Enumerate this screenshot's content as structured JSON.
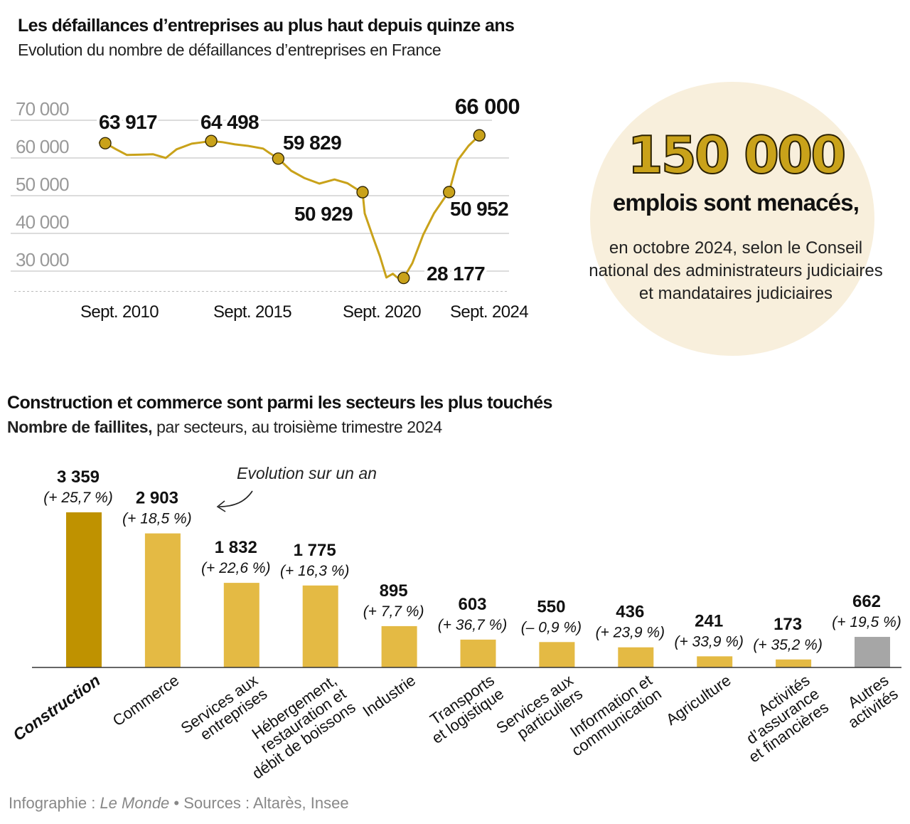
{
  "top": {
    "title": "Les défaillances d’entreprises au plus haut depuis quinze ans",
    "subtitle": "Evolution du nombre de défaillances d’entreprises en France"
  },
  "callout": {
    "number": "150 000",
    "headline": "emplois sont menacés,",
    "text": "en octobre 2024, selon le Conseil national des administrateurs judiciaires et mandataires judiciaires",
    "background": "#f8efdc",
    "number_color": "#c9a21a"
  },
  "bottom": {
    "title": "Construction et commerce sont parmi les secteurs les plus touchés",
    "subtitle_bold": "Nombre de faillites,",
    "subtitle_rest": " par secteurs, au troisième trimestre 2024",
    "annotation": "Evolution sur un an"
  },
  "footer": {
    "prefix": "Infographie : ",
    "brand": "Le Monde",
    "rest": " • Sources : Altarès, Insee"
  },
  "chart_data": [
    {
      "type": "line",
      "title": "Les défaillances d’entreprises au plus haut depuis quinze ans",
      "subtitle": "Evolution du nombre de défaillances d’entreprises en France",
      "ylim": [
        25000,
        70000
      ],
      "yticks": [
        {
          "v": 70000,
          "label": "70 000"
        },
        {
          "v": 60000,
          "label": "60 000"
        },
        {
          "v": 50000,
          "label": "50 000"
        },
        {
          "v": 40000,
          "label": "40 000"
        },
        {
          "v": 30000,
          "label": "30 000"
        }
      ],
      "xticks": [
        {
          "t": "2010-09",
          "label": "Sept. 2010"
        },
        {
          "t": "2015-09",
          "label": "Sept. 2015"
        },
        {
          "t": "2020-09",
          "label": "Sept. 2020"
        },
        {
          "t": "2024-09",
          "label": "Sept. 2024"
        }
      ],
      "grid": true,
      "color": "#c9a21a",
      "series": [
        [
          "2009-10",
          64100
        ],
        [
          "2010-01",
          63917
        ],
        [
          "2010-06",
          62300
        ],
        [
          "2010-11",
          60800
        ],
        [
          "2011-06",
          60900
        ],
        [
          "2011-11",
          61000
        ],
        [
          "2012-05",
          60000
        ],
        [
          "2012-10",
          62300
        ],
        [
          "2013-05",
          63800
        ],
        [
          "2013-09",
          64100
        ],
        [
          "2014-02",
          64498
        ],
        [
          "2014-07",
          64200
        ],
        [
          "2015-01",
          63600
        ],
        [
          "2015-07",
          63200
        ],
        [
          "2016-02",
          62500
        ],
        [
          "2016-05",
          61300
        ],
        [
          "2016-09",
          59829
        ],
        [
          "2017-03",
          56600
        ],
        [
          "2017-09",
          54700
        ],
        [
          "2018-04",
          53200
        ],
        [
          "2018-11",
          54300
        ],
        [
          "2019-05",
          53300
        ],
        [
          "2019-10",
          51500
        ],
        [
          "2019-12",
          50929
        ],
        [
          "2020-01",
          45300
        ],
        [
          "2020-05",
          38700
        ],
        [
          "2020-08",
          34000
        ],
        [
          "2020-11",
          28300
        ],
        [
          "2021-02",
          29300
        ],
        [
          "2021-04",
          28300
        ],
        [
          "2021-07",
          28177
        ],
        [
          "2021-11",
          32100
        ],
        [
          "2022-04",
          39600
        ],
        [
          "2022-09",
          45300
        ],
        [
          "2023-02",
          49500
        ],
        [
          "2023-04",
          50952
        ],
        [
          "2023-08",
          59400
        ],
        [
          "2024-01",
          63200
        ],
        [
          "2024-06",
          66000
        ]
      ],
      "annotated_points": [
        {
          "t": "2010-01",
          "v": 63917,
          "label": "63 917"
        },
        {
          "t": "2014-02",
          "v": 64498,
          "label": "64 498"
        },
        {
          "t": "2016-09",
          "v": 59829,
          "label": "59 829"
        },
        {
          "t": "2019-12",
          "v": 50929,
          "label": "50 929"
        },
        {
          "t": "2021-07",
          "v": 28177,
          "label": "28 177"
        },
        {
          "t": "2023-04",
          "v": 50952,
          "label": "50 952"
        },
        {
          "t": "2024-06",
          "v": 66000,
          "label": "66 000"
        }
      ]
    },
    {
      "type": "bar",
      "title": "Construction et commerce sont parmi les secteurs les plus touchés",
      "subtitle": "Nombre de faillites, par secteurs, au troisième trimestre 2024",
      "grid": false,
      "colors": {
        "highlight": "#bf9200",
        "default": "#e4ba44",
        "other": "#a6a6a6"
      },
      "categories": [
        {
          "lines": [
            "Construction"
          ],
          "value": 3359,
          "value_label": "3 359",
          "change": "(+ 25,7 %)",
          "style": "highlight"
        },
        {
          "lines": [
            "Commerce"
          ],
          "value": 2903,
          "value_label": "2 903",
          "change": "(+ 18,5 %)",
          "style": "default"
        },
        {
          "lines": [
            "Services aux",
            "entreprises"
          ],
          "value": 1832,
          "value_label": "1 832",
          "change": "(+ 22,6 %)",
          "style": "default"
        },
        {
          "lines": [
            "Hébergement,",
            "restauration et",
            "débit de boissons"
          ],
          "value": 1775,
          "value_label": "1 775",
          "change": "(+ 16,3 %)",
          "style": "default"
        },
        {
          "lines": [
            "Industrie"
          ],
          "value": 895,
          "value_label": "895",
          "change": "(+ 7,7 %)",
          "style": "default"
        },
        {
          "lines": [
            "Transports",
            "et logistique"
          ],
          "value": 603,
          "value_label": "603",
          "change": "(+ 36,7 %)",
          "style": "default"
        },
        {
          "lines": [
            "Services aux",
            "particuliers"
          ],
          "value": 550,
          "value_label": "550",
          "change": "(– 0,9 %)",
          "style": "default"
        },
        {
          "lines": [
            "Information et",
            "communication"
          ],
          "value": 436,
          "value_label": "436",
          "change": "(+ 23,9 %)",
          "style": "default"
        },
        {
          "lines": [
            "Agriculture"
          ],
          "value": 241,
          "value_label": "241",
          "change": "(+ 33,9 %)",
          "style": "default"
        },
        {
          "lines": [
            "Activités",
            "d’assurance",
            "et financières"
          ],
          "value": 173,
          "value_label": "173",
          "change": "(+ 35,2 %)",
          "style": "default"
        },
        {
          "lines": [
            "Autres",
            "activités"
          ],
          "value": 662,
          "value_label": "662",
          "change": "(+ 19,5 %)",
          "style": "other"
        }
      ]
    }
  ]
}
